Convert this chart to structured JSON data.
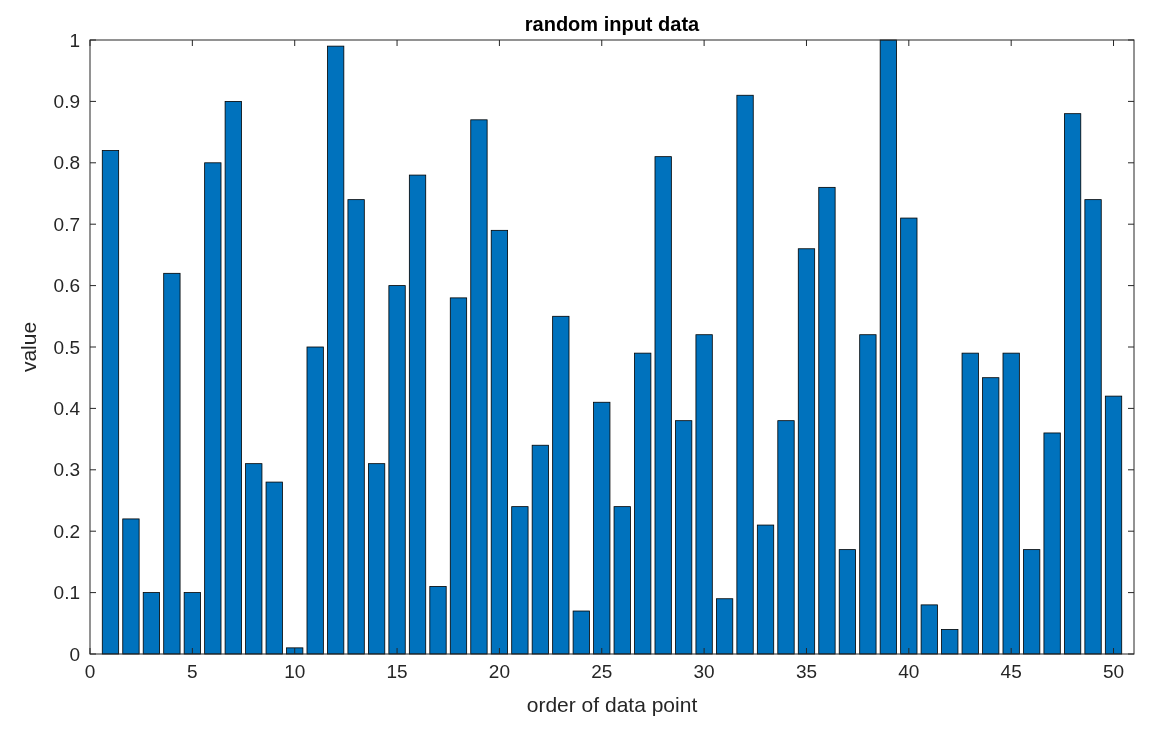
{
  "chart_data": {
    "type": "bar",
    "title": "random input data",
    "xlabel": "order of data point",
    "ylabel": "value",
    "x": [
      1,
      2,
      3,
      4,
      5,
      6,
      7,
      8,
      9,
      10,
      11,
      12,
      13,
      14,
      15,
      16,
      17,
      18,
      19,
      20,
      21,
      22,
      23,
      24,
      25,
      26,
      27,
      28,
      29,
      30,
      31,
      32,
      33,
      34,
      35,
      36,
      37,
      38,
      39,
      40,
      41,
      42,
      43,
      44,
      45,
      46,
      47,
      48,
      49,
      50
    ],
    "values": [
      0.82,
      0.22,
      0.1,
      0.62,
      0.1,
      0.8,
      0.9,
      0.31,
      0.28,
      0.01,
      0.5,
      0.99,
      0.74,
      0.31,
      0.6,
      0.78,
      0.11,
      0.58,
      0.87,
      0.69,
      0.24,
      0.34,
      0.55,
      0.07,
      0.41,
      0.24,
      0.49,
      0.81,
      0.38,
      0.52,
      0.09,
      0.91,
      0.21,
      0.38,
      0.66,
      0.76,
      0.17,
      0.52,
      1.0,
      0.71,
      0.08,
      0.04,
      0.49,
      0.45,
      0.49,
      0.17,
      0.36,
      0.88,
      0.74,
      0.42
    ],
    "color": "#0072bd",
    "xlim": [
      0,
      51
    ],
    "xticks": [
      0,
      5,
      10,
      15,
      20,
      25,
      30,
      35,
      40,
      45,
      50
    ],
    "ylim": [
      0,
      1
    ],
    "yticks": [
      0,
      0.1,
      0.2,
      0.3,
      0.4,
      0.5,
      0.6,
      0.7,
      0.8,
      0.9,
      1
    ],
    "grid": false
  }
}
